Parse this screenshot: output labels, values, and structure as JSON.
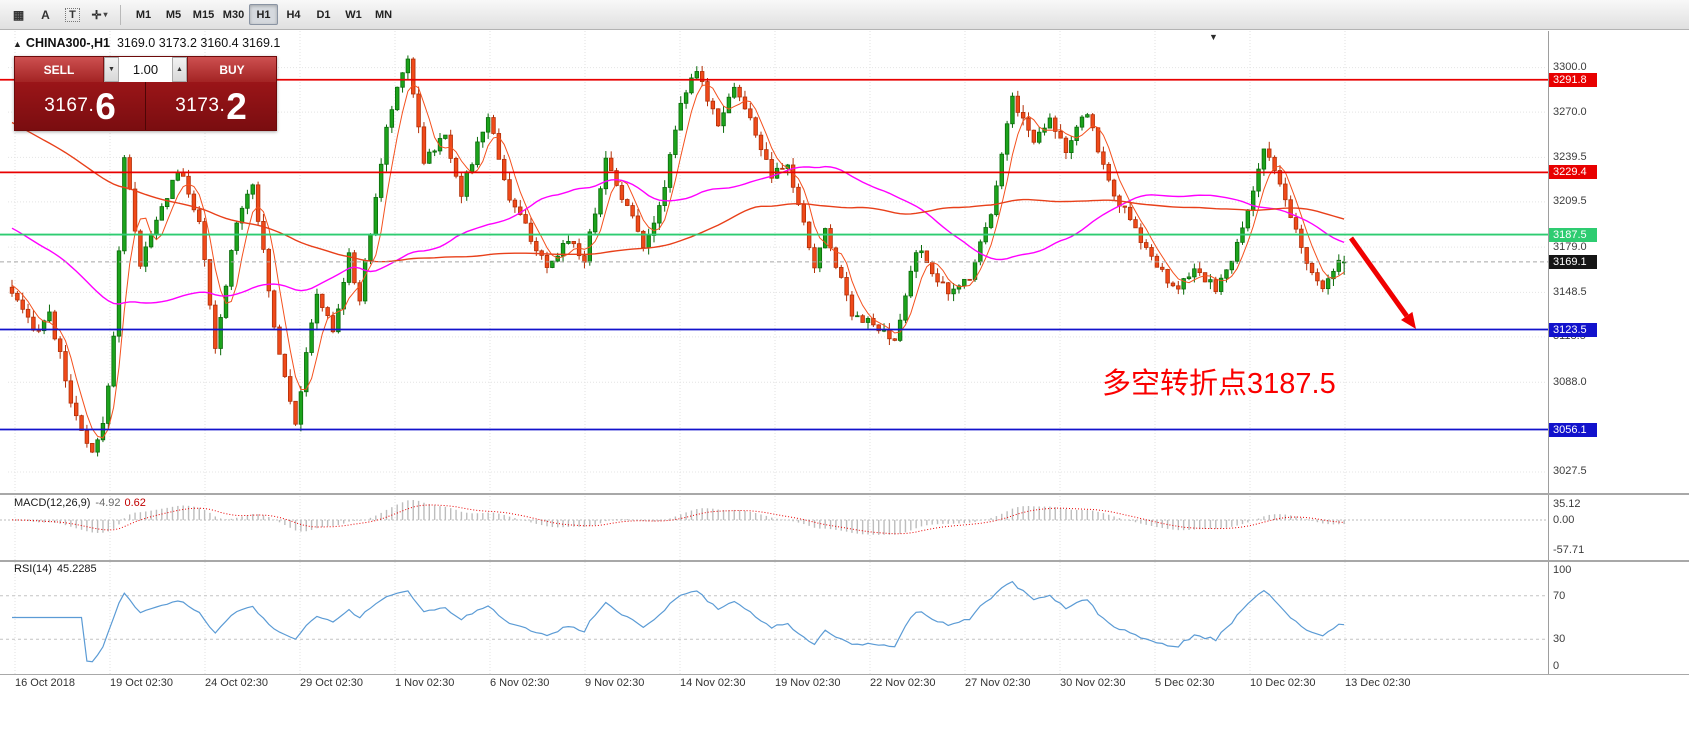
{
  "toolbar": {
    "tools": [
      {
        "name": "grid-tool-icon",
        "glyph": "▦"
      },
      {
        "name": "label-tool-icon",
        "glyph": "A"
      },
      {
        "name": "text-tool-icon",
        "glyph": "T",
        "boxed": true
      },
      {
        "name": "crosshair-tool-icon",
        "glyph": "✛",
        "caret": "▾"
      }
    ],
    "timeframes": [
      {
        "label": "M1",
        "active": false
      },
      {
        "label": "M5",
        "active": false
      },
      {
        "label": "M15",
        "active": false
      },
      {
        "label": "M30",
        "active": false
      },
      {
        "label": "H1",
        "active": true
      },
      {
        "label": "H4",
        "active": false
      },
      {
        "label": "D1",
        "active": false
      },
      {
        "label": "W1",
        "active": false
      },
      {
        "label": "MN",
        "active": false
      }
    ]
  },
  "chart": {
    "collapse_glyph": "▲",
    "symbol_period": "CHINA300-,H1",
    "ohlc_text": "3169.0 3173.2 3160.4 3169.1",
    "shift_marker_glyph": "▼"
  },
  "trade_panel": {
    "sell_label": "SELL",
    "buy_label": "BUY",
    "volume": "1.00",
    "spin_down": "▼",
    "spin_up": "▲",
    "bid_small": "3167.",
    "bid_big": "6",
    "ask_small": "3173.",
    "ask_big": "2"
  },
  "price_axis": {
    "ticks": [
      3300.0,
      3270.0,
      3239.5,
      3209.5,
      3179.0,
      3148.5,
      3118.5,
      3088.0,
      3027.5
    ]
  },
  "time_axis": {
    "labels": [
      "16 Oct 2018",
      "19 Oct 02:30",
      "24 Oct 02:30",
      "29 Oct 02:30",
      "1 Nov 02:30",
      "6 Nov 02:30",
      "9 Nov 02:30",
      "14 Nov 02:30",
      "19 Nov 02:30",
      "22 Nov 02:30",
      "27 Nov 02:30",
      "30 Nov 02:30",
      "5 Dec 02:30",
      "10 Dec 02:30",
      "13 Dec 02:30"
    ]
  },
  "macd_panel": {
    "name": "MACD(12,26,9)",
    "value_main": "-4.92",
    "value_signal": "0.62",
    "axis_labels": [
      "35.12",
      "0.00",
      "-57.71"
    ],
    "range": [
      -57.71,
      35.12
    ],
    "histogram_color": "#bdbdbd",
    "signal_color": "#e80000"
  },
  "rsi_panel": {
    "name": "RSI(14)",
    "value": "45.2285",
    "axis_labels": [
      "100",
      "70",
      "30",
      "0"
    ],
    "levels": [
      70,
      30
    ],
    "line_color": "#5b9bd5"
  },
  "annotation": {
    "text": "多空转折点3187.5",
    "color": "#fa0000"
  },
  "arrow": {
    "color": "#f00000",
    "from": [
      1351,
      238
    ],
    "to": [
      1416,
      329
    ]
  },
  "chart_data": {
    "type": "candlestick",
    "symbol": "CHINA300-",
    "timeframe": "H1",
    "last_ohlc": {
      "open": 3169.0,
      "high": 3173.2,
      "low": 3160.4,
      "close": 3169.1
    },
    "current_price": 3169.1,
    "current_price_tag_color": "#151515",
    "y_range": [
      3014,
      3324
    ],
    "candle_count": 250,
    "close_waypoints": [
      [
        0,
        3148
      ],
      [
        4,
        3122
      ],
      [
        7,
        3134
      ],
      [
        12,
        3062
      ],
      [
        15,
        3038
      ],
      [
        17,
        3058
      ],
      [
        19,
        3118
      ],
      [
        21,
        3240
      ],
      [
        24,
        3168
      ],
      [
        27,
        3196
      ],
      [
        31,
        3232
      ],
      [
        35,
        3198
      ],
      [
        38,
        3108
      ],
      [
        42,
        3198
      ],
      [
        45,
        3224
      ],
      [
        49,
        3125
      ],
      [
        53,
        3062
      ],
      [
        57,
        3148
      ],
      [
        60,
        3122
      ],
      [
        63,
        3172
      ],
      [
        65,
        3144
      ],
      [
        70,
        3258
      ],
      [
        73,
        3300
      ],
      [
        74,
        3306
      ],
      [
        77,
        3238
      ],
      [
        81,
        3254
      ],
      [
        84,
        3216
      ],
      [
        89,
        3268
      ],
      [
        93,
        3212
      ],
      [
        97,
        3186
      ],
      [
        100,
        3162
      ],
      [
        104,
        3186
      ],
      [
        107,
        3170
      ],
      [
        111,
        3238
      ],
      [
        115,
        3206
      ],
      [
        118,
        3182
      ],
      [
        121,
        3204
      ],
      [
        125,
        3278
      ],
      [
        128,
        3296
      ],
      [
        132,
        3264
      ],
      [
        135,
        3288
      ],
      [
        139,
        3256
      ],
      [
        142,
        3226
      ],
      [
        145,
        3234
      ],
      [
        150,
        3166
      ],
      [
        152,
        3190
      ],
      [
        157,
        3136
      ],
      [
        161,
        3126
      ],
      [
        165,
        3114
      ],
      [
        169,
        3178
      ],
      [
        172,
        3164
      ],
      [
        175,
        3146
      ],
      [
        179,
        3160
      ],
      [
        183,
        3204
      ],
      [
        187,
        3280
      ],
      [
        191,
        3250
      ],
      [
        194,
        3268
      ],
      [
        197,
        3244
      ],
      [
        201,
        3270
      ],
      [
        205,
        3222
      ],
      [
        209,
        3196
      ],
      [
        213,
        3172
      ],
      [
        217,
        3150
      ],
      [
        221,
        3162
      ],
      [
        225,
        3152
      ],
      [
        228,
        3168
      ],
      [
        231,
        3205
      ],
      [
        234,
        3246
      ],
      [
        238,
        3210
      ],
      [
        242,
        3168
      ],
      [
        245,
        3148
      ],
      [
        247,
        3166
      ],
      [
        249,
        3169.1
      ]
    ],
    "up_color": "#1ca31c",
    "up_stroke": "#0a6a0a",
    "down_color": "#f04a1a",
    "down_stroke": "#b23008",
    "hlines": [
      {
        "price": 3291.8,
        "color": "#e80000"
      },
      {
        "price": 3229.4,
        "color": "#e80000"
      },
      {
        "price": 3187.5,
        "color": "#2ecc71"
      },
      {
        "price": 3123.5,
        "color": "#1212cc"
      },
      {
        "price": 3056.1,
        "color": "#1212cc"
      }
    ],
    "moving_averages": [
      {
        "period": 5,
        "color": "#f4511e",
        "width": 1
      },
      {
        "period": 45,
        "color": "#ff00ff",
        "width": 1.4
      },
      {
        "period": 120,
        "color": "#e8401a",
        "width": 1.4
      }
    ]
  }
}
